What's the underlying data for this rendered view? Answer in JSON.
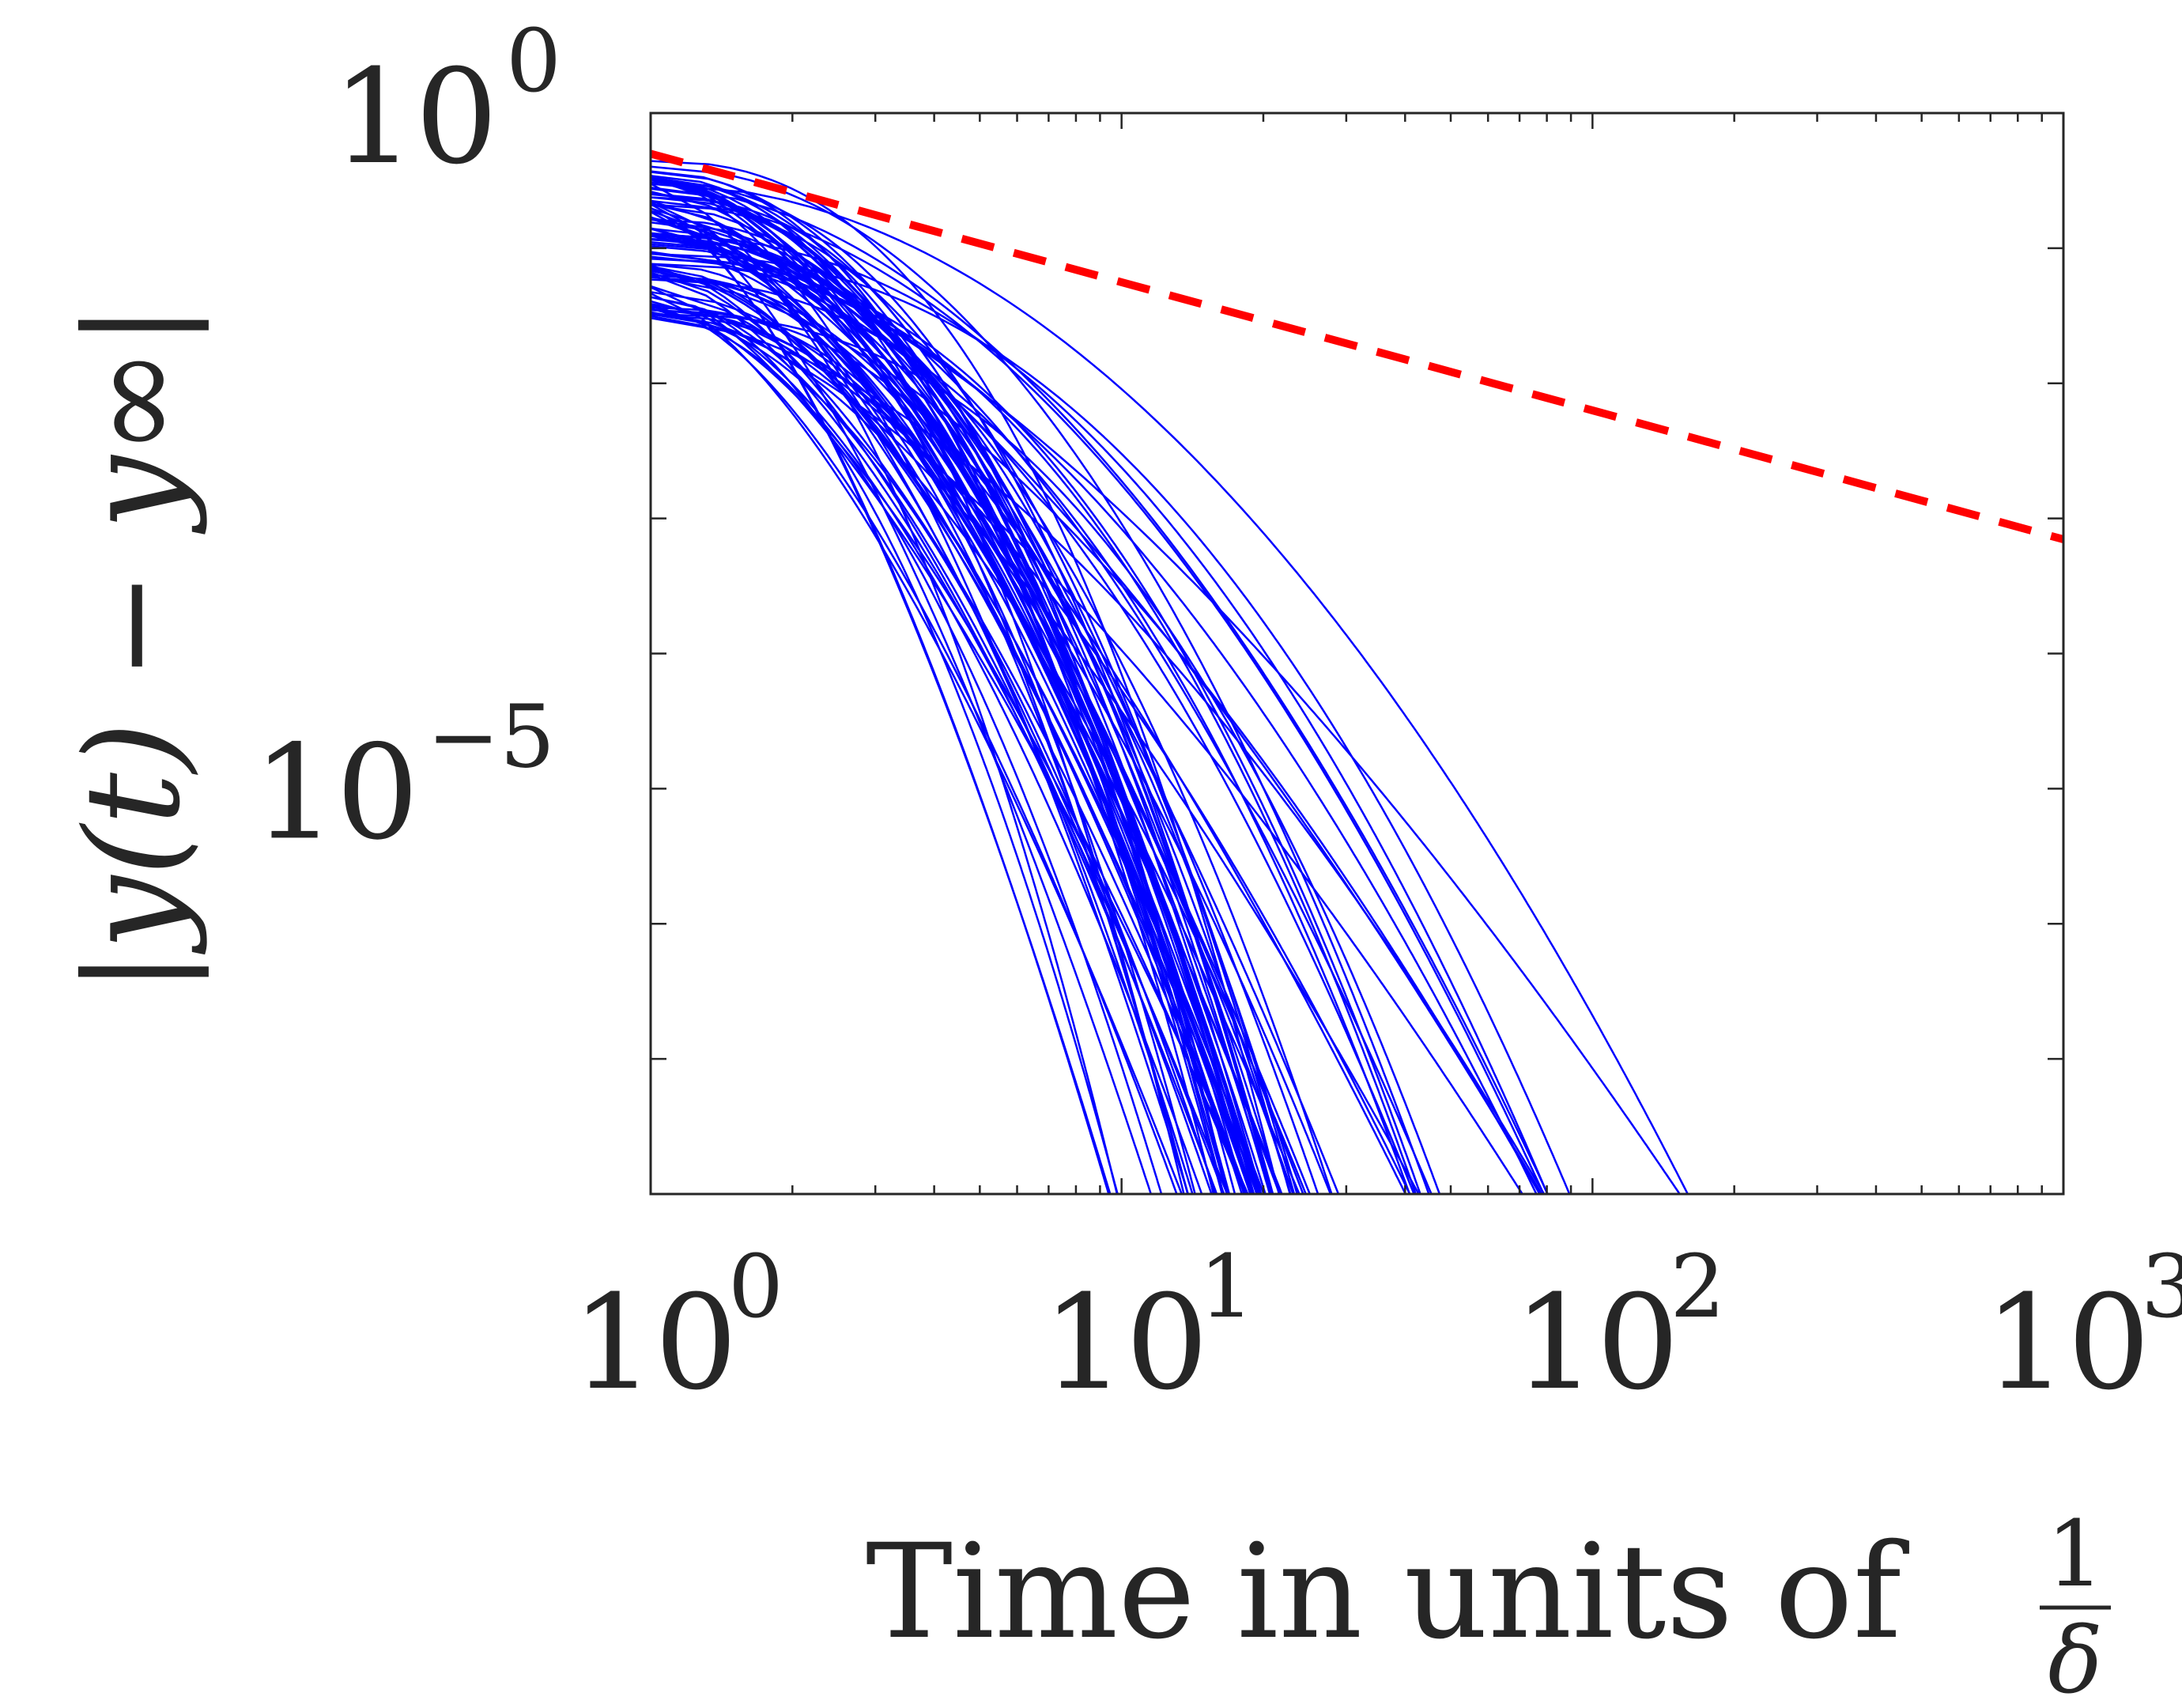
{
  "chart_data": {
    "type": "line",
    "title": "",
    "xlabel": "Time in units of",
    "xlabel_fraction": {
      "numerator": "1",
      "denominator": "δ"
    },
    "ylabel": "|y(t) − y∞|",
    "xscale": "log",
    "yscale": "log",
    "xlim": [
      1,
      1000
    ],
    "ylim": [
      1e-08,
      1
    ],
    "x_tick_labels": [
      {
        "value": 1,
        "base": "10",
        "exp": "0"
      },
      {
        "value": 10,
        "base": "10",
        "exp": "1"
      },
      {
        "value": 100,
        "base": "10",
        "exp": "2"
      },
      {
        "value": 1000,
        "base": "10",
        "exp": "3"
      }
    ],
    "y_tick_labels": [
      {
        "value": 1,
        "base": "10",
        "exp": "0"
      },
      {
        "value": 1e-05,
        "base": "10",
        "exp": "−5"
      }
    ],
    "grid": false,
    "legend": "none",
    "series": [
      {
        "style": "dashed",
        "color": "#ff0000",
        "x": [
          1,
          10,
          100,
          1000
        ],
        "y": [
          0.5,
          0.056,
          0.0063,
          0.0007
        ]
      },
      {
        "style": "solid",
        "color": "#0000ff",
        "description_count": 100,
        "start_y_range": [
          0.03,
          0.45
        ],
        "cutoff_x_clusters": [
          {
            "x": 13,
            "count": 6
          },
          {
            "x": 18,
            "count": 14
          },
          {
            "x": 21,
            "count": 18
          },
          {
            "x": 24,
            "count": 16
          },
          {
            "x": 27.5,
            "count": 14
          },
          {
            "x": 35,
            "count": 7
          },
          {
            "x": 55,
            "count": 10
          },
          {
            "x": 110,
            "count": 9
          },
          {
            "x": 230,
            "count": 2
          }
        ]
      }
    ],
    "colors": {
      "axes": "#262626",
      "trajectories": "#0000ff",
      "bound": "#ff0000"
    }
  }
}
